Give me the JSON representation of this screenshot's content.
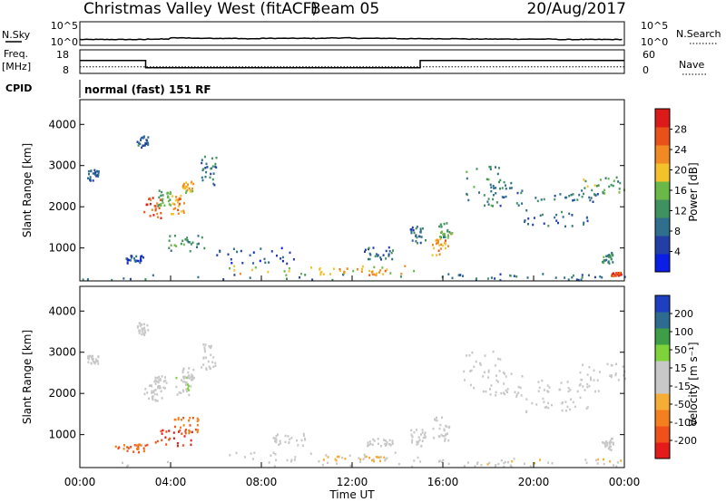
{
  "header": {
    "title": "Christmas Valley West (fitACF)",
    "beam": "Beam 05",
    "date": "20/Aug/2017"
  },
  "sky_panel": {
    "label": "N.Sky",
    "tick_top": "10^5",
    "tick_bottom": "10^0",
    "right_label": "N.Search",
    "right_tick_top": "10^5",
    "right_tick_bottom": "10^0"
  },
  "freq_panel": {
    "label_line1": "Freq.",
    "label_line2": "[MHz]",
    "ticks": [
      "18",
      "8"
    ],
    "right_label": "Nave",
    "right_ticks": [
      "60",
      "0"
    ]
  },
  "cpid": {
    "label": "CPID",
    "value": "normal (fast) 151 RF"
  },
  "colors": {
    "power_scale": [
      "#0a1ee6",
      "#233fa6",
      "#2f6e8c",
      "#3f9160",
      "#6ab848",
      "#f3c22b",
      "#f18a22",
      "#e8521a",
      "#dd1a1a"
    ],
    "velocity_scale": [
      "#e51b1b",
      "#f0501a",
      "#f47f1f",
      "#f6ad36",
      "#c8c8c8",
      "#c8c8c8",
      "#7ed33a",
      "#3d9e47",
      "#2d6b8f",
      "#1e3fc0"
    ]
  },
  "chart_data": [
    {
      "type": "heatmap",
      "name_key": "power",
      "ylabel": "Slant Range [km]",
      "yticks": [
        "1000",
        "2000",
        "3000",
        "4000"
      ],
      "ylim": [
        200,
        4600
      ],
      "colorbar_label": "Power [dB]",
      "colorbar_ticks": [
        "4",
        "8",
        "12",
        "16",
        "20",
        "24",
        "28"
      ],
      "colorbar_range": [
        0,
        32
      ],
      "regions": [
        {
          "t": [
            0.3,
            0.8
          ],
          "r": [
            2600,
            2900
          ],
          "v": 8
        },
        {
          "t": [
            0.0,
            23.9
          ],
          "r": [
            200,
            350
          ],
          "v": 10
        },
        {
          "t": [
            6.5,
            15.0
          ],
          "r": [
            300,
            550
          ],
          "v": 18
        },
        {
          "t": [
            10.5,
            13.5
          ],
          "r": [
            320,
            500
          ],
          "v": 22
        },
        {
          "t": [
            2.8,
            3.6
          ],
          "r": [
            1700,
            2200
          ],
          "v": 26
        },
        {
          "t": [
            3.4,
            4.0
          ],
          "r": [
            2000,
            2400
          ],
          "v": 14
        },
        {
          "t": [
            4.0,
            4.6
          ],
          "r": [
            1800,
            2300
          ],
          "v": 24
        },
        {
          "t": [
            4.5,
            5.0
          ],
          "r": [
            2300,
            2600
          ],
          "v": 20
        },
        {
          "t": [
            5.3,
            6.0
          ],
          "r": [
            2500,
            3200
          ],
          "v": 10
        },
        {
          "t": [
            3.8,
            5.5
          ],
          "r": [
            900,
            1300
          ],
          "v": 12
        },
        {
          "t": [
            2.5,
            3.0
          ],
          "r": [
            3400,
            3700
          ],
          "v": 8
        },
        {
          "t": [
            2.0,
            2.8
          ],
          "r": [
            600,
            800
          ],
          "v": 6
        },
        {
          "t": [
            6.0,
            9.5
          ],
          "r": [
            600,
            1000
          ],
          "v": 6
        },
        {
          "t": [
            12.5,
            13.8
          ],
          "r": [
            700,
            1000
          ],
          "v": 8
        },
        {
          "t": [
            14.5,
            15.2
          ],
          "r": [
            1100,
            1500
          ],
          "v": 9
        },
        {
          "t": [
            15.5,
            16.2
          ],
          "r": [
            800,
            1200
          ],
          "v": 22
        },
        {
          "t": [
            15.8,
            16.4
          ],
          "r": [
            1200,
            1600
          ],
          "v": 14
        },
        {
          "t": [
            16.8,
            18.5
          ],
          "r": [
            2000,
            3000
          ],
          "v": 12
        },
        {
          "t": [
            18.0,
            19.5
          ],
          "r": [
            2000,
            2600
          ],
          "v": 10
        },
        {
          "t": [
            19.5,
            22.5
          ],
          "r": [
            1500,
            1900
          ],
          "v": 8
        },
        {
          "t": [
            20.0,
            23.0
          ],
          "r": [
            2100,
            2300
          ],
          "v": 9
        },
        {
          "t": [
            22.0,
            24.0
          ],
          "r": [
            2300,
            2700
          ],
          "v": 14
        },
        {
          "t": [
            23.0,
            23.5
          ],
          "r": [
            600,
            900
          ],
          "v": 12
        },
        {
          "t": [
            16.0,
            24.0
          ],
          "r": [
            200,
            350
          ],
          "v": 8
        },
        {
          "t": [
            23.4,
            23.9
          ],
          "r": [
            300,
            380
          ],
          "v": 28
        }
      ]
    },
    {
      "type": "heatmap",
      "name_key": "velocity",
      "ylabel": "Slant Range [km]",
      "yticks": [
        "1000",
        "2000",
        "3000",
        "4000"
      ],
      "ylim": [
        200,
        4600
      ],
      "colorbar_label": "Velocity [m s⁻¹]",
      "colorbar_ticks": [
        "-200",
        "-100",
        "-50",
        "-15",
        "15",
        "50",
        "100",
        "200"
      ],
      "colorbar_range": [
        -250,
        250
      ],
      "regions": [
        {
          "t": [
            0.3,
            0.8
          ],
          "r": [
            2700,
            2900
          ],
          "v": 0
        },
        {
          "t": [
            0.0,
            23.9
          ],
          "r": [
            200,
            320
          ],
          "v": 20
        },
        {
          "t": [
            6.5,
            15.0
          ],
          "r": [
            300,
            550
          ],
          "v": -30
        },
        {
          "t": [
            10.5,
            13.5
          ],
          "r": [
            320,
            450
          ],
          "v": -60
        },
        {
          "t": [
            15.0,
            24.0
          ],
          "r": [
            200,
            400
          ],
          "v": -40
        },
        {
          "t": [
            1.5,
            3.0
          ],
          "r": [
            550,
            750
          ],
          "v": -150
        },
        {
          "t": [
            3.3,
            5.0
          ],
          "r": [
            700,
            1100
          ],
          "v": -200
        },
        {
          "t": [
            4.0,
            5.2
          ],
          "r": [
            1000,
            1400
          ],
          "v": -140
        },
        {
          "t": [
            2.8,
            3.6
          ],
          "r": [
            1800,
            2200
          ],
          "v": 0
        },
        {
          "t": [
            3.2,
            3.8
          ],
          "r": [
            2100,
            2400
          ],
          "v": -30
        },
        {
          "t": [
            4.2,
            4.9
          ],
          "r": [
            1900,
            2400
          ],
          "v": 40
        },
        {
          "t": [
            4.5,
            5.0
          ],
          "r": [
            2300,
            2600
          ],
          "v": 30
        },
        {
          "t": [
            5.3,
            6.0
          ],
          "r": [
            2500,
            3200
          ],
          "v": -20
        },
        {
          "t": [
            2.5,
            3.0
          ],
          "r": [
            3400,
            3700
          ],
          "v": 0
        },
        {
          "t": [
            8.5,
            10.0
          ],
          "r": [
            700,
            1000
          ],
          "v": 0
        },
        {
          "t": [
            12.5,
            13.8
          ],
          "r": [
            700,
            900
          ],
          "v": 0
        },
        {
          "t": [
            14.5,
            15.2
          ],
          "r": [
            700,
            1100
          ],
          "v": 0
        },
        {
          "t": [
            15.5,
            16.3
          ],
          "r": [
            800,
            1400
          ],
          "v": 0
        },
        {
          "t": [
            16.8,
            18.5
          ],
          "r": [
            2000,
            3000
          ],
          "v": 0
        },
        {
          "t": [
            18.0,
            19.5
          ],
          "r": [
            1900,
            2500
          ],
          "v": 0
        },
        {
          "t": [
            19.5,
            22.5
          ],
          "r": [
            1500,
            1900
          ],
          "v": 0
        },
        {
          "t": [
            20.0,
            23.0
          ],
          "r": [
            2000,
            2300
          ],
          "v": 0
        },
        {
          "t": [
            22.0,
            24.0
          ],
          "r": [
            2300,
            2700
          ],
          "v": 0
        },
        {
          "t": [
            23.0,
            23.5
          ],
          "r": [
            600,
            900
          ],
          "v": 0
        }
      ]
    }
  ],
  "xaxis": {
    "label": "Time UT",
    "ticks": [
      "00:00",
      "04:00",
      "08:00",
      "12:00",
      "16:00",
      "20:00",
      "00:00"
    ],
    "range_hours": [
      0,
      24
    ]
  },
  "nsky_series": [
    1.0,
    1.0,
    1.0,
    1.1,
    1.4,
    1.3,
    1.3,
    1.2,
    1.3,
    1.3,
    1.3,
    1.4,
    1.3,
    1.3,
    1.2,
    1.2,
    1.2,
    1.1,
    1.1,
    1.1,
    1.1,
    1.0,
    1.0,
    1.0
  ],
  "freq_series": {
    "t": [
      0,
      2.9,
      2.9,
      15.0,
      15.0,
      24
    ],
    "v": [
      14.5,
      14.5,
      10.8,
      10.8,
      14.5,
      14.5
    ]
  },
  "nave_level": 20
}
